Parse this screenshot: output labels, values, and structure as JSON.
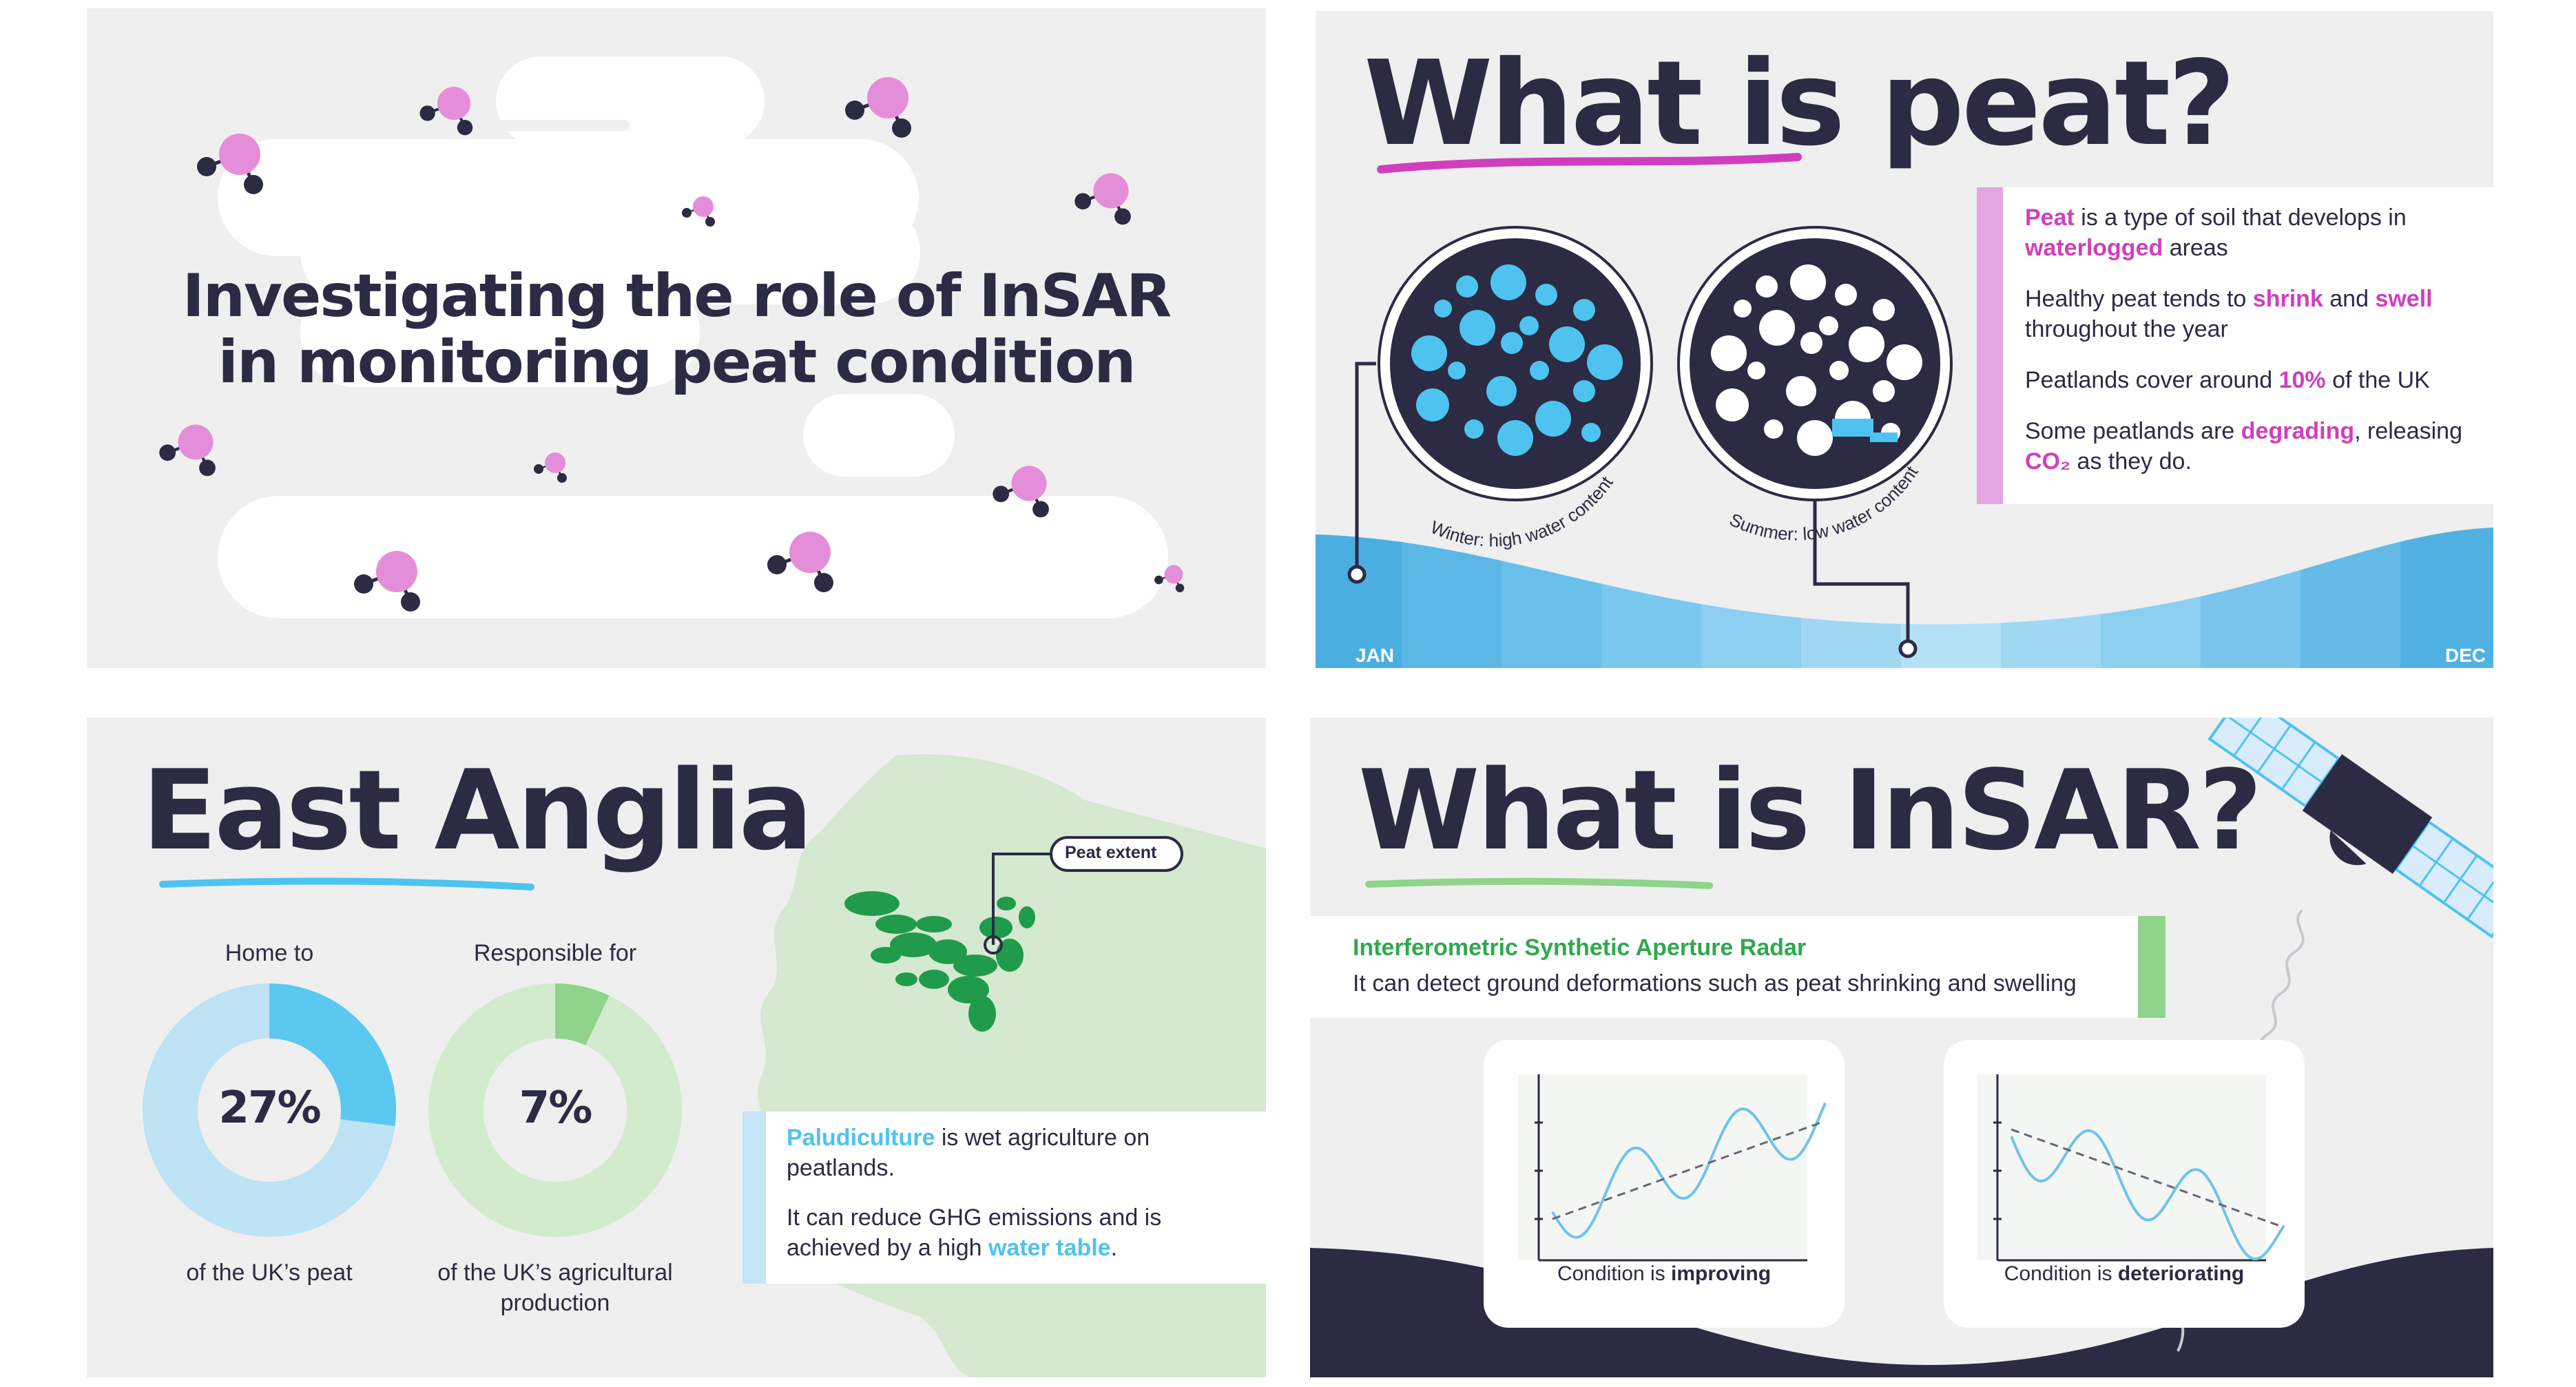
{
  "slide1": {
    "title_line1": "Investigating the role of InSAR",
    "title_line2": "in monitoring peat condition"
  },
  "slide2": {
    "title": "What is peat?",
    "bullets": [
      {
        "parts": [
          {
            "t": "Peat",
            "hl": "pink"
          },
          {
            "t": " is a type of soil that develops in ",
            "hl": ""
          },
          {
            "t": "waterlogged",
            "hl": "pink"
          },
          {
            "t": " areas",
            "hl": ""
          }
        ]
      },
      {
        "parts": [
          {
            "t": "Healthy peat tends to ",
            "hl": ""
          },
          {
            "t": "shrink",
            "hl": "pink"
          },
          {
            "t": " and ",
            "hl": ""
          },
          {
            "t": "swell",
            "hl": "pink"
          },
          {
            "t": " throughout the year",
            "hl": ""
          }
        ]
      },
      {
        "parts": [
          {
            "t": "Peatlands cover around ",
            "hl": ""
          },
          {
            "t": "10%",
            "hl": "pink"
          },
          {
            "t": " of the UK",
            "hl": ""
          }
        ]
      },
      {
        "parts": [
          {
            "t": "Some peatlands are ",
            "hl": ""
          },
          {
            "t": "degrading",
            "hl": "pink"
          },
          {
            "t": ", releasing ",
            "hl": ""
          },
          {
            "t": "CO₂",
            "hl": "pink"
          },
          {
            "t": " as they do.",
            "hl": ""
          }
        ]
      }
    ],
    "winter_label": "Winter: high water content",
    "summer_label": "Summer: low water content",
    "month_start": "JAN",
    "month_end": "DEC"
  },
  "slide3": {
    "title": "East Anglia",
    "donut1": {
      "top_label": "Home to",
      "value_label": "27%",
      "value": 27,
      "bottom_label": "of the UK’s peat"
    },
    "donut2": {
      "top_label": "Responsible for",
      "value_label": "7%",
      "value": 7,
      "bottom_label_line1": "of the UK’s agricultural",
      "bottom_label_line2": "production"
    },
    "peat_extent_label": "Peat extent",
    "info_p1": [
      {
        "t": "Paludiculture",
        "hl": "blue"
      },
      {
        "t": " is wet agriculture on peatlands.",
        "hl": ""
      }
    ],
    "info_p2": [
      {
        "t": "It can reduce GHG emissions and is achieved by a high ",
        "hl": ""
      },
      {
        "t": "water table",
        "hl": "blue"
      },
      {
        "t": ".",
        "hl": ""
      }
    ]
  },
  "slide4": {
    "title": "What is InSAR?",
    "acronym": "Interferometric Synthetic Aperture Radar",
    "description": "It can detect ground deformations such as peat shrinking and swelling",
    "card1_prefix": "Condition is ",
    "card1_bold": "improving",
    "card2_prefix": "Condition is ",
    "card2_bold": "deteriorating"
  },
  "colors": {
    "navy": "#2b2b44",
    "pink": "#cf3fbd",
    "sky": "#4ec3ef",
    "green": "#2fa84f",
    "panel": "#efefef"
  }
}
